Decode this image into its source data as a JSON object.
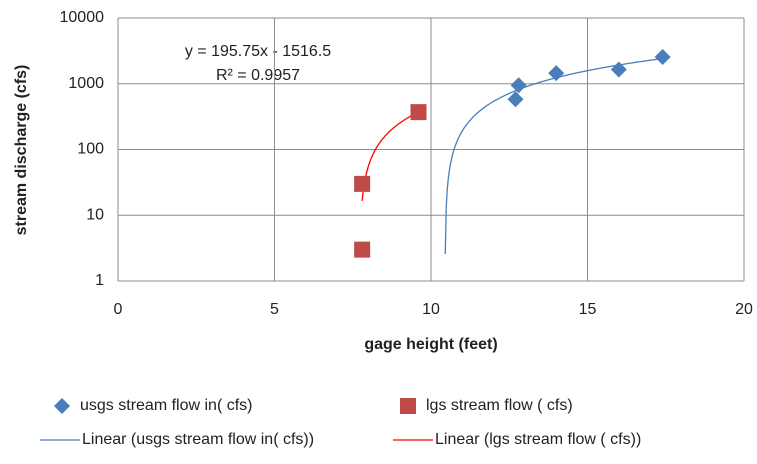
{
  "chart_data": {
    "type": "scatter",
    "x_label": "gage height (feet)",
    "y_label": "stream discharge (cfs)",
    "xlim": [
      0,
      20
    ],
    "xticks": [
      0,
      5,
      10,
      15,
      20
    ],
    "ylim": [
      1,
      10000
    ],
    "yticks": [
      1,
      10,
      100,
      1000,
      10000
    ],
    "log_y": true,
    "grid": true,
    "legend": "bottom",
    "annotations": [
      "y = 195.75x - 1516.5",
      "R² = 0.9957"
    ],
    "series": [
      {
        "name": "usgs stream flow in( cfs)",
        "marker": "diamond",
        "color": "#4a7ebb",
        "trendline_name": "Linear (usgs stream flow in( cfs))",
        "trendline_color": "#4a7ebb",
        "x": [
          12.7,
          12.8,
          14.0,
          16.0,
          17.4
        ],
        "values": [
          580,
          950,
          1450,
          1650,
          2550
        ]
      },
      {
        "name": "lgs stream flow ( cfs)",
        "marker": "square",
        "color": "#be4b48",
        "trendline_name": "Linear (lgs stream flow ( cfs))",
        "trendline_color": "#ff0000",
        "x": [
          7.8,
          7.8,
          9.6
        ],
        "values": [
          30,
          3,
          370
        ]
      }
    ]
  }
}
